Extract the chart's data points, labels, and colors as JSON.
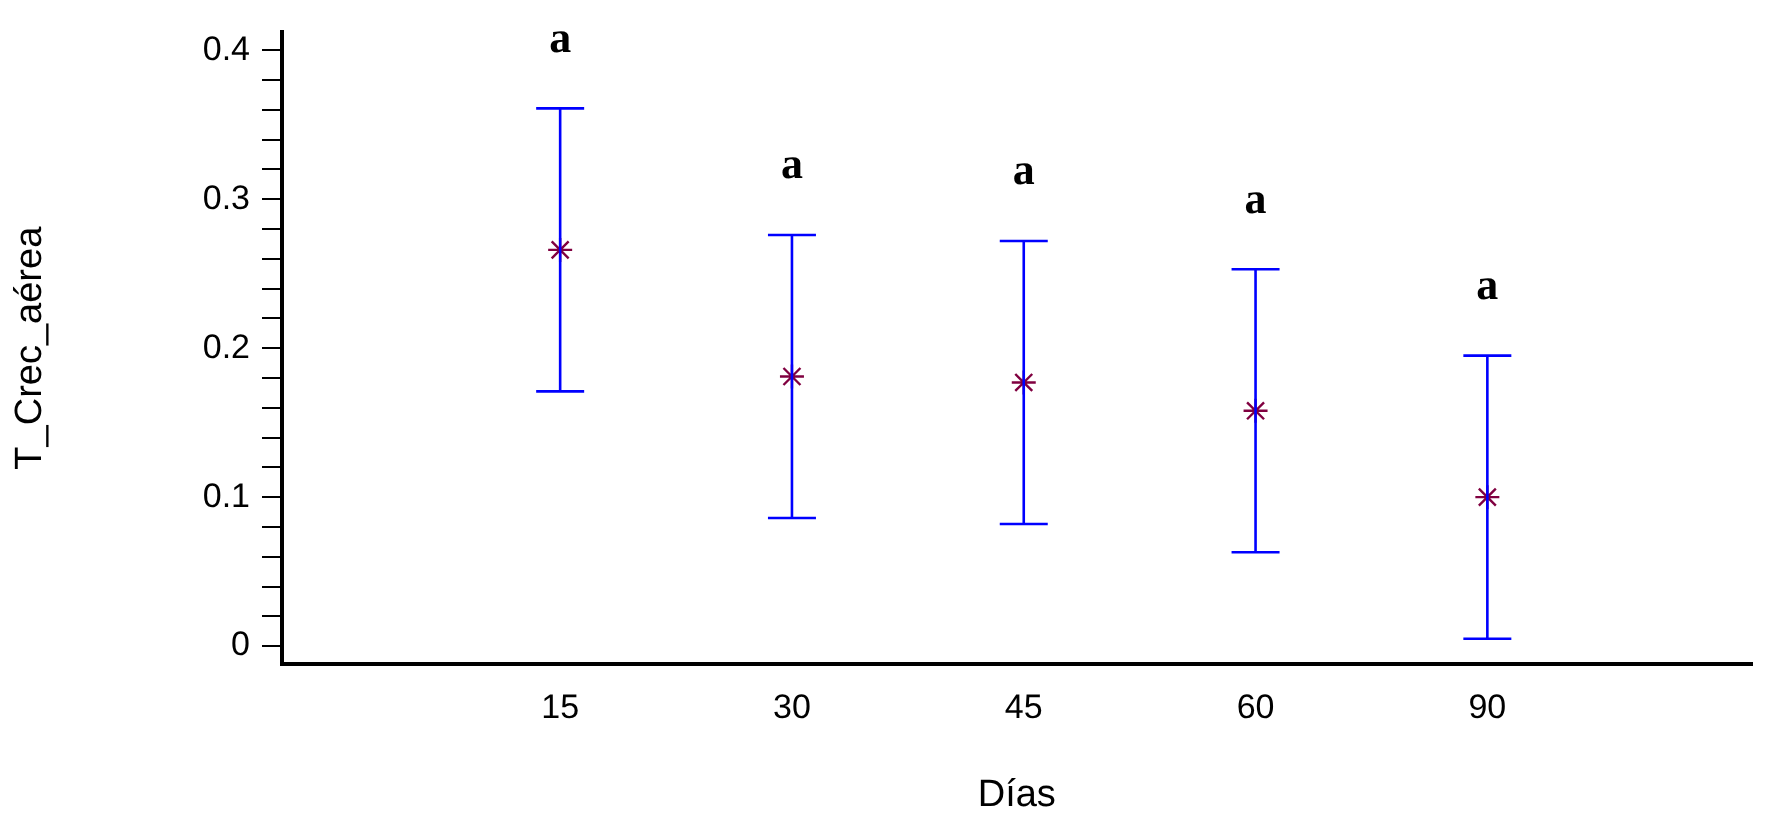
{
  "chart_data": {
    "type": "scatter",
    "xlabel": "Días",
    "ylabel": "T_Crec_aérea",
    "categories": [
      "15",
      "30",
      "45",
      "60",
      "90"
    ],
    "series": [
      {
        "color": "#800040",
        "values": [
          0.266,
          0.181,
          0.177,
          0.158,
          0.1
        ],
        "errors": [
          0.095,
          0.095,
          0.095,
          0.095,
          0.095
        ]
      }
    ],
    "ylim": [
      -0.012,
      0.412
    ],
    "yticks": [
      0,
      {
        "value": 0.02,
        "label": null
      },
      {
        "value": 0.04,
        "label": null
      },
      {
        "value": 0.06,
        "label": null
      },
      {
        "value": 0.08,
        "label": null
      },
      0.1,
      {
        "value": 0.12,
        "label": null
      },
      {
        "value": 0.14,
        "label": null
      },
      {
        "value": 0.16,
        "label": null
      },
      {
        "value": 0.18,
        "label": null
      },
      0.2,
      {
        "value": 0.22,
        "label": null
      },
      {
        "value": 0.24,
        "label": null
      },
      {
        "value": 0.26,
        "label": null
      },
      {
        "value": 0.28,
        "label": null
      },
      0.3,
      {
        "value": 0.32,
        "label": null
      },
      {
        "value": 0.34,
        "label": null
      },
      {
        "value": 0.36,
        "label": null
      },
      {
        "value": 0.38,
        "label": null
      },
      0.4
    ],
    "annotations": [
      "a",
      "a",
      "a",
      "a",
      "a"
    ],
    "marker": "cross",
    "grid": false,
    "legend": false
  }
}
